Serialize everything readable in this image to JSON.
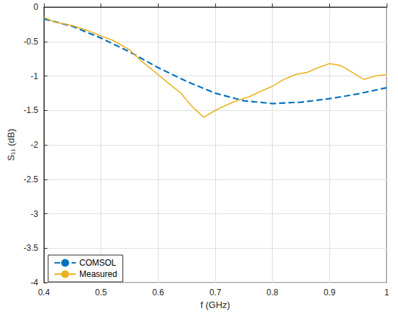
{
  "chart_data": {
    "type": "line",
    "x_label": "f (GHz)",
    "y_label": "S₁₁ (dB)",
    "xlim": [
      0.4,
      1
    ],
    "xticks": [
      0.4,
      0.5,
      0.6,
      0.7,
      0.8,
      0.9,
      1
    ],
    "ylim": [
      -4,
      0
    ],
    "yticks": [
      -4,
      -3.5,
      -3,
      -2.5,
      -2,
      -1.5,
      -1,
      -0.5,
      0
    ],
    "grid": true,
    "legend": "lower left",
    "series": [
      {
        "name": "COMSOL",
        "color": "#0072bd",
        "line_style": "dashed",
        "x": [
          0.4,
          0.45,
          0.5,
          0.55,
          0.6,
          0.65,
          0.7,
          0.75,
          0.8,
          0.85,
          0.9,
          0.95,
          1.0
        ],
        "values": [
          -0.17,
          -0.28,
          -0.45,
          -0.65,
          -0.88,
          -1.08,
          -1.25,
          -1.36,
          -1.4,
          -1.38,
          -1.33,
          -1.26,
          -1.17
        ]
      },
      {
        "name": "Measured",
        "color": "#edb120",
        "line_style": "solid",
        "x": [
          0.4,
          0.42,
          0.45,
          0.48,
          0.5,
          0.52,
          0.55,
          0.57,
          0.6,
          0.62,
          0.64,
          0.66,
          0.68,
          0.7,
          0.72,
          0.74,
          0.76,
          0.78,
          0.8,
          0.82,
          0.84,
          0.86,
          0.88,
          0.9,
          0.92,
          0.94,
          0.96,
          0.98,
          1.0
        ],
        "values": [
          -0.15,
          -0.22,
          -0.27,
          -0.35,
          -0.42,
          -0.48,
          -0.62,
          -0.78,
          -0.98,
          -1.12,
          -1.25,
          -1.45,
          -1.6,
          -1.5,
          -1.42,
          -1.35,
          -1.3,
          -1.22,
          -1.15,
          -1.05,
          -0.98,
          -0.95,
          -0.88,
          -0.82,
          -0.85,
          -0.95,
          -1.05,
          -1.0,
          -0.98
        ]
      }
    ]
  }
}
